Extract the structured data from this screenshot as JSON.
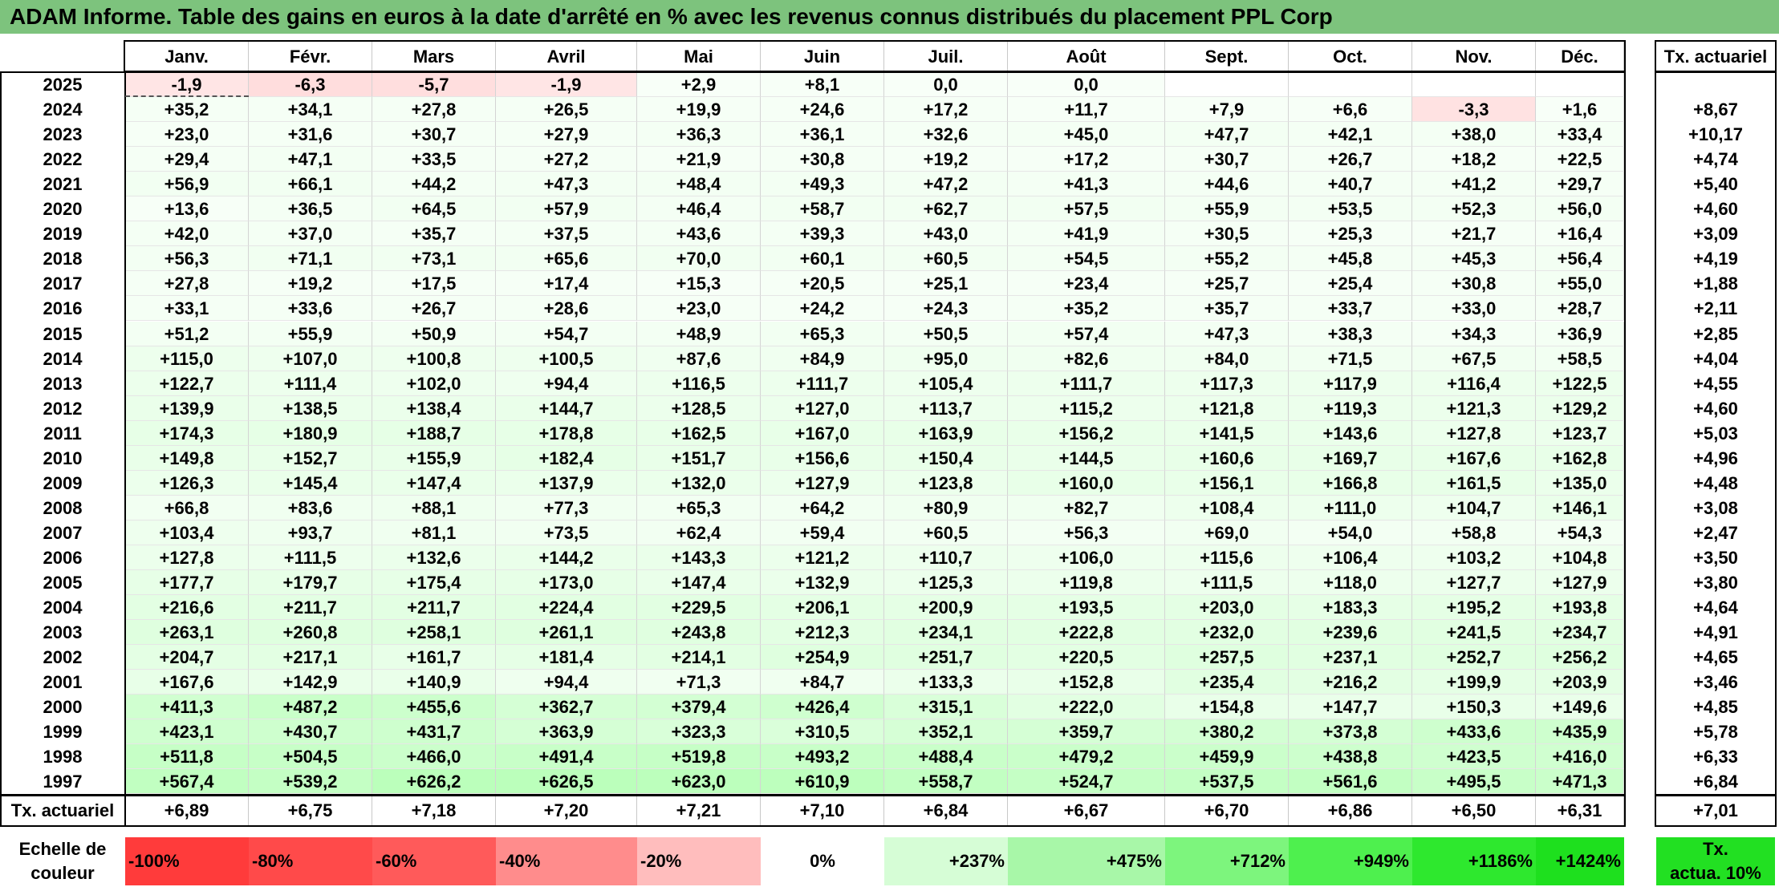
{
  "title": "ADAM Informe. Table des gains en euros à la date d'arrêté en % avec les revenus connus distribués du placement PPL Corp",
  "months": [
    "Janv.",
    "Févr.",
    "Mars",
    "Avril",
    "Mai",
    "Juin",
    "Juil.",
    "Août",
    "Sept.",
    "Oct.",
    "Nov.",
    "Déc."
  ],
  "actuarial_header": "Tx. actuariel",
  "rows": [
    {
      "year": "2025",
      "vals": [
        "-1,9",
        "-6,3",
        "-5,7",
        "-1,9",
        "+2,9",
        "+8,1",
        "0,0",
        "0,0",
        "",
        "",
        "",
        ""
      ],
      "tx": ""
    },
    {
      "year": "2024",
      "vals": [
        "+35,2",
        "+34,1",
        "+27,8",
        "+26,5",
        "+19,9",
        "+24,6",
        "+17,2",
        "+11,7",
        "+7,9",
        "+6,6",
        "-3,3",
        "+1,6"
      ],
      "tx": "+8,67"
    },
    {
      "year": "2023",
      "vals": [
        "+23,0",
        "+31,6",
        "+30,7",
        "+27,9",
        "+36,3",
        "+36,1",
        "+32,6",
        "+45,0",
        "+47,7",
        "+42,1",
        "+38,0",
        "+33,4"
      ],
      "tx": "+10,17"
    },
    {
      "year": "2022",
      "vals": [
        "+29,4",
        "+47,1",
        "+33,5",
        "+27,2",
        "+21,9",
        "+30,8",
        "+19,2",
        "+17,2",
        "+30,7",
        "+26,7",
        "+18,2",
        "+22,5"
      ],
      "tx": "+4,74"
    },
    {
      "year": "2021",
      "vals": [
        "+56,9",
        "+66,1",
        "+44,2",
        "+47,3",
        "+48,4",
        "+49,3",
        "+47,2",
        "+41,3",
        "+44,6",
        "+40,7",
        "+41,2",
        "+29,7"
      ],
      "tx": "+5,40"
    },
    {
      "year": "2020",
      "vals": [
        "+13,6",
        "+36,5",
        "+64,5",
        "+57,9",
        "+46,4",
        "+58,7",
        "+62,7",
        "+57,5",
        "+55,9",
        "+53,5",
        "+52,3",
        "+56,0"
      ],
      "tx": "+4,60"
    },
    {
      "year": "2019",
      "vals": [
        "+42,0",
        "+37,0",
        "+35,7",
        "+37,5",
        "+43,6",
        "+39,3",
        "+43,0",
        "+41,9",
        "+30,5",
        "+25,3",
        "+21,7",
        "+16,4"
      ],
      "tx": "+3,09"
    },
    {
      "year": "2018",
      "vals": [
        "+56,3",
        "+71,1",
        "+73,1",
        "+65,6",
        "+70,0",
        "+60,1",
        "+60,5",
        "+54,5",
        "+55,2",
        "+45,8",
        "+45,3",
        "+56,4"
      ],
      "tx": "+4,19"
    },
    {
      "year": "2017",
      "vals": [
        "+27,8",
        "+19,2",
        "+17,5",
        "+17,4",
        "+15,3",
        "+20,5",
        "+25,1",
        "+23,4",
        "+25,7",
        "+25,4",
        "+30,8",
        "+55,0"
      ],
      "tx": "+1,88"
    },
    {
      "year": "2016",
      "vals": [
        "+33,1",
        "+33,6",
        "+26,7",
        "+28,6",
        "+23,0",
        "+24,2",
        "+24,3",
        "+35,2",
        "+35,7",
        "+33,7",
        "+33,0",
        "+28,7"
      ],
      "tx": "+2,11"
    },
    {
      "year": "2015",
      "vals": [
        "+51,2",
        "+55,9",
        "+50,9",
        "+54,7",
        "+48,9",
        "+65,3",
        "+50,5",
        "+57,4",
        "+47,3",
        "+38,3",
        "+34,3",
        "+36,9"
      ],
      "tx": "+2,85"
    },
    {
      "year": "2014",
      "vals": [
        "+115,0",
        "+107,0",
        "+100,8",
        "+100,5",
        "+87,6",
        "+84,9",
        "+95,0",
        "+82,6",
        "+84,0",
        "+71,5",
        "+67,5",
        "+58,5"
      ],
      "tx": "+4,04"
    },
    {
      "year": "2013",
      "vals": [
        "+122,7",
        "+111,4",
        "+102,0",
        "+94,4",
        "+116,5",
        "+111,7",
        "+105,4",
        "+111,7",
        "+117,3",
        "+117,9",
        "+116,4",
        "+122,5"
      ],
      "tx": "+4,55"
    },
    {
      "year": "2012",
      "vals": [
        "+139,9",
        "+138,5",
        "+138,4",
        "+144,7",
        "+128,5",
        "+127,0",
        "+113,7",
        "+115,2",
        "+121,8",
        "+119,3",
        "+121,3",
        "+129,2"
      ],
      "tx": "+4,60"
    },
    {
      "year": "2011",
      "vals": [
        "+174,3",
        "+180,9",
        "+188,7",
        "+178,8",
        "+162,5",
        "+167,0",
        "+163,9",
        "+156,2",
        "+141,5",
        "+143,6",
        "+127,8",
        "+123,7"
      ],
      "tx": "+5,03"
    },
    {
      "year": "2010",
      "vals": [
        "+149,8",
        "+152,7",
        "+155,9",
        "+182,4",
        "+151,7",
        "+156,6",
        "+150,4",
        "+144,5",
        "+160,6",
        "+169,7",
        "+167,6",
        "+162,8"
      ],
      "tx": "+4,96"
    },
    {
      "year": "2009",
      "vals": [
        "+126,3",
        "+145,4",
        "+147,4",
        "+137,9",
        "+132,0",
        "+127,9",
        "+123,8",
        "+160,0",
        "+156,1",
        "+166,8",
        "+161,5",
        "+135,0"
      ],
      "tx": "+4,48"
    },
    {
      "year": "2008",
      "vals": [
        "+66,8",
        "+83,6",
        "+88,1",
        "+77,3",
        "+65,3",
        "+64,2",
        "+80,9",
        "+82,7",
        "+108,4",
        "+111,0",
        "+104,7",
        "+146,1"
      ],
      "tx": "+3,08"
    },
    {
      "year": "2007",
      "vals": [
        "+103,4",
        "+93,7",
        "+81,1",
        "+73,5",
        "+62,4",
        "+59,4",
        "+60,5",
        "+56,3",
        "+69,0",
        "+54,0",
        "+58,8",
        "+54,3"
      ],
      "tx": "+2,47"
    },
    {
      "year": "2006",
      "vals": [
        "+127,8",
        "+111,5",
        "+132,6",
        "+144,2",
        "+143,3",
        "+121,2",
        "+110,7",
        "+106,0",
        "+115,6",
        "+106,4",
        "+103,2",
        "+104,8"
      ],
      "tx": "+3,50"
    },
    {
      "year": "2005",
      "vals": [
        "+177,7",
        "+179,7",
        "+175,4",
        "+173,0",
        "+147,4",
        "+132,9",
        "+125,3",
        "+119,8",
        "+111,5",
        "+118,0",
        "+127,7",
        "+127,9"
      ],
      "tx": "+3,80"
    },
    {
      "year": "2004",
      "vals": [
        "+216,6",
        "+211,7",
        "+211,7",
        "+224,4",
        "+229,5",
        "+206,1",
        "+200,9",
        "+193,5",
        "+203,0",
        "+183,3",
        "+195,2",
        "+193,8"
      ],
      "tx": "+4,64"
    },
    {
      "year": "2003",
      "vals": [
        "+263,1",
        "+260,8",
        "+258,1",
        "+261,1",
        "+243,8",
        "+212,3",
        "+234,1",
        "+222,8",
        "+232,0",
        "+239,6",
        "+241,5",
        "+234,7"
      ],
      "tx": "+4,91"
    },
    {
      "year": "2002",
      "vals": [
        "+204,7",
        "+217,1",
        "+161,7",
        "+181,4",
        "+214,1",
        "+254,9",
        "+251,7",
        "+220,5",
        "+257,5",
        "+237,1",
        "+252,7",
        "+256,2"
      ],
      "tx": "+4,65"
    },
    {
      "year": "2001",
      "vals": [
        "+167,6",
        "+142,9",
        "+140,9",
        "+94,4",
        "+71,3",
        "+84,7",
        "+133,3",
        "+152,8",
        "+235,4",
        "+216,2",
        "+199,9",
        "+203,9"
      ],
      "tx": "+3,46"
    },
    {
      "year": "2000",
      "vals": [
        "+411,3",
        "+487,2",
        "+455,6",
        "+362,7",
        "+379,4",
        "+426,4",
        "+315,1",
        "+222,0",
        "+154,8",
        "+147,7",
        "+150,3",
        "+149,6"
      ],
      "tx": "+4,85"
    },
    {
      "year": "1999",
      "vals": [
        "+423,1",
        "+430,7",
        "+431,7",
        "+363,9",
        "+323,3",
        "+310,5",
        "+352,1",
        "+359,7",
        "+380,2",
        "+373,8",
        "+433,6",
        "+435,9"
      ],
      "tx": "+5,78"
    },
    {
      "year": "1998",
      "vals": [
        "+511,8",
        "+504,5",
        "+466,0",
        "+491,4",
        "+519,8",
        "+493,2",
        "+488,4",
        "+479,2",
        "+459,9",
        "+438,8",
        "+423,5",
        "+416,0"
      ],
      "tx": "+6,33"
    },
    {
      "year": "1997",
      "vals": [
        "+567,4",
        "+539,2",
        "+626,2",
        "+626,5",
        "+623,0",
        "+610,9",
        "+558,7",
        "+524,7",
        "+537,5",
        "+561,6",
        "+495,5",
        "+471,3"
      ],
      "tx": "+6,84"
    }
  ],
  "footer": {
    "label": "Tx. actuariel",
    "vals": [
      "+6,89",
      "+6,75",
      "+7,18",
      "+7,20",
      "+7,21",
      "+7,10",
      "+6,84",
      "+6,67",
      "+6,70",
      "+6,86",
      "+6,50",
      "+6,31"
    ],
    "total": "+7,01"
  },
  "scale": {
    "label_line1": "Echelle de",
    "label_line2": "couleur",
    "items": [
      {
        "text": "-100%",
        "color": "#ff3b3b"
      },
      {
        "text": "-80%",
        "color": "#ff4a4a"
      },
      {
        "text": "-60%",
        "color": "#ff5a5a"
      },
      {
        "text": "-40%",
        "color": "#ff8c8c"
      },
      {
        "text": "-20%",
        "color": "#ffbdbd"
      },
      {
        "text": "0%",
        "color": "#ffffff"
      },
      {
        "text": "+237%",
        "color": "#d6fdd6"
      },
      {
        "text": "+475%",
        "color": "#a8f7a8"
      },
      {
        "text": "+712%",
        "color": "#7df57d"
      },
      {
        "text": "+949%",
        "color": "#4ef04e"
      },
      {
        "text": "+1186%",
        "color": "#2ee82e"
      },
      {
        "text": "+1424%",
        "color": "#1ee01e"
      }
    ],
    "actua_line1": "Tx.",
    "actua_line2": "actua. 10%",
    "actua_color": "#22e022"
  },
  "colors": {
    "title_bg": "#7dc37d"
  }
}
